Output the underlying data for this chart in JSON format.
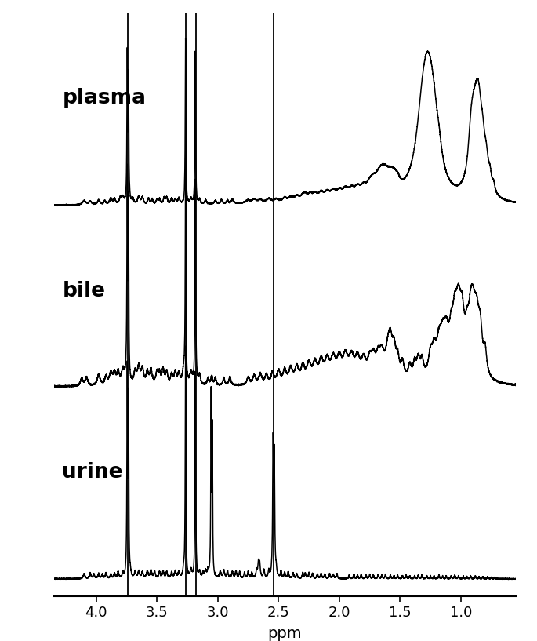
{
  "xlabel": "ppm",
  "xlim": [
    4.35,
    0.55
  ],
  "xticks": [
    4.0,
    3.5,
    3.0,
    2.5,
    2.0,
    1.5,
    1.0
  ],
  "xtick_labels": [
    "4.0",
    "3.5",
    "3.0",
    "2.5",
    "2.0",
    "1.5",
    "1.0"
  ],
  "labels": [
    "plasma",
    "bile",
    "urine"
  ],
  "background_color": "#ffffff",
  "line_color": "#000000",
  "linewidth": 1.1,
  "figsize": [
    6.85,
    8.17
  ],
  "dpi": 100,
  "vlines_all": [
    3.74,
    3.26,
    3.18
  ],
  "vline_urine_only": 2.54
}
